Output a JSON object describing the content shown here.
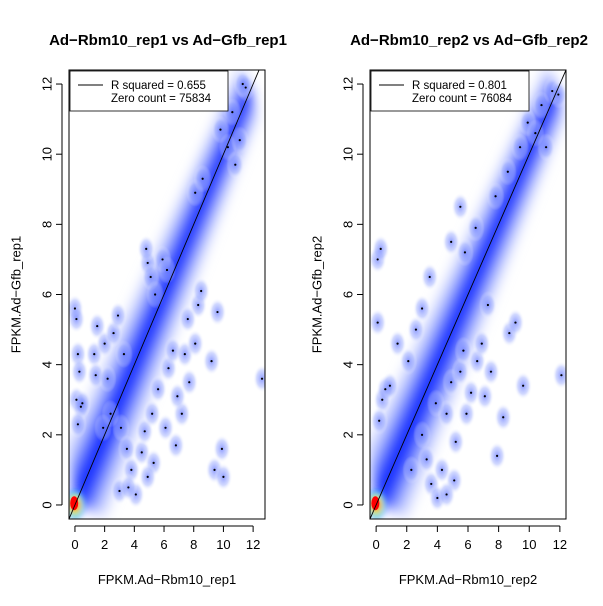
{
  "chart_data": [
    {
      "type": "scatter",
      "title": "Ad−Rbm10_rep1 vs Ad−Gfb_rep1",
      "xlabel": "FPKM.Ad−Rbm10_rep1",
      "ylabel": "FPKM.Ad−Gfb_rep1",
      "xlim": [
        -0.4,
        12.8
      ],
      "ylim": [
        -0.4,
        12.4
      ],
      "xticks": [
        "0",
        "2",
        "4",
        "6",
        "8",
        "10",
        "12"
      ],
      "yticks": [
        "0",
        "2",
        "4",
        "6",
        "8",
        "10",
        "12"
      ],
      "legend": {
        "position": "top-left",
        "entries": [
          "R squared = 0.655",
          "Zero count = 75834"
        ]
      },
      "fit_line": {
        "slope": 1.0,
        "intercept": 0.0
      },
      "grid": false,
      "density": {
        "colormap": [
          "#ffffff",
          "#0000ff",
          "#00ffff",
          "#ffff00",
          "#ff0000"
        ],
        "mode": "smoothScatter"
      },
      "points": [
        [
          0.0,
          5.6
        ],
        [
          0.1,
          5.3
        ],
        [
          0.2,
          4.3
        ],
        [
          0.3,
          3.8
        ],
        [
          0.1,
          3.0
        ],
        [
          0.4,
          2.8
        ],
        [
          0.2,
          2.3
        ],
        [
          0.5,
          2.9
        ],
        [
          1.3,
          4.3
        ],
        [
          1.5,
          5.1
        ],
        [
          2.0,
          4.6
        ],
        [
          1.4,
          3.7
        ],
        [
          2.2,
          3.6
        ],
        [
          2.6,
          4.9
        ],
        [
          2.9,
          5.4
        ],
        [
          3.3,
          4.3
        ],
        [
          4.9,
          6.9
        ],
        [
          5.1,
          6.5
        ],
        [
          5.4,
          6.0
        ],
        [
          4.8,
          7.3
        ],
        [
          5.9,
          7.0
        ],
        [
          6.2,
          6.7
        ],
        [
          8.1,
          8.9
        ],
        [
          8.6,
          9.3
        ],
        [
          9.8,
          10.7
        ],
        [
          10.3,
          10.2
        ],
        [
          10.6,
          11.2
        ],
        [
          10.8,
          9.7
        ],
        [
          11.1,
          10.4
        ],
        [
          11.5,
          11.9
        ],
        [
          11.3,
          12.0
        ],
        [
          3.1,
          2.2
        ],
        [
          3.5,
          1.6
        ],
        [
          3.8,
          1.0
        ],
        [
          4.1,
          0.3
        ],
        [
          3.0,
          0.4
        ],
        [
          4.5,
          1.5
        ],
        [
          4.7,
          2.1
        ],
        [
          5.2,
          2.6
        ],
        [
          5.6,
          3.3
        ],
        [
          6.1,
          2.2
        ],
        [
          6.3,
          3.9
        ],
        [
          6.6,
          4.4
        ],
        [
          6.8,
          1.7
        ],
        [
          7.2,
          2.6
        ],
        [
          7.4,
          4.3
        ],
        [
          7.7,
          3.5
        ],
        [
          8.1,
          4.6
        ],
        [
          6.9,
          3.1
        ],
        [
          5.3,
          1.2
        ],
        [
          4.9,
          0.8
        ],
        [
          3.6,
          0.5
        ],
        [
          8.3,
          5.7
        ],
        [
          9.2,
          4.1
        ],
        [
          9.6,
          5.5
        ],
        [
          12.6,
          3.6
        ],
        [
          9.9,
          1.6
        ],
        [
          9.4,
          1.0
        ],
        [
          10.0,
          0.8
        ],
        [
          8.5,
          6.1
        ],
        [
          7.6,
          5.3
        ],
        [
          2.4,
          2.6
        ],
        [
          1.9,
          2.2
        ]
      ]
    },
    {
      "type": "scatter",
      "title": "Ad−Rbm10_rep2 vs Ad−Gfb_rep2",
      "xlabel": "FPKM.Ad−Rbm10_rep2",
      "ylabel": "FPKM.Ad−Gfb_rep2",
      "xlim": [
        -0.4,
        12.4
      ],
      "ylim": [
        -0.4,
        12.4
      ],
      "xticks": [
        "0",
        "2",
        "4",
        "6",
        "8",
        "10",
        "12"
      ],
      "yticks": [
        "0",
        "2",
        "4",
        "6",
        "8",
        "10",
        "12"
      ],
      "legend": {
        "position": "top-left",
        "entries": [
          "R squared = 0.801",
          "Zero count = 76084"
        ]
      },
      "fit_line": {
        "slope": 1.0,
        "intercept": 0.0
      },
      "grid": false,
      "density": {
        "colormap": [
          "#ffffff",
          "#0000ff",
          "#00ffff",
          "#ffff00",
          "#ff0000"
        ],
        "mode": "smoothScatter"
      },
      "points": [
        [
          0.1,
          7.0
        ],
        [
          0.3,
          7.3
        ],
        [
          0.1,
          5.2
        ],
        [
          0.4,
          3.0
        ],
        [
          0.6,
          3.3
        ],
        [
          0.2,
          2.4
        ],
        [
          0.9,
          3.4
        ],
        [
          1.4,
          4.6
        ],
        [
          2.1,
          4.1
        ],
        [
          2.6,
          5.0
        ],
        [
          3.0,
          5.6
        ],
        [
          3.5,
          6.5
        ],
        [
          4.9,
          7.5
        ],
        [
          5.5,
          8.5
        ],
        [
          5.8,
          7.2
        ],
        [
          6.5,
          7.9
        ],
        [
          7.8,
          8.8
        ],
        [
          8.6,
          9.5
        ],
        [
          9.4,
          10.2
        ],
        [
          9.9,
          10.9
        ],
        [
          10.4,
          10.6
        ],
        [
          10.8,
          11.4
        ],
        [
          11.1,
          10.2
        ],
        [
          11.5,
          11.8
        ],
        [
          11.9,
          11.7
        ],
        [
          3.0,
          2.0
        ],
        [
          3.3,
          1.3
        ],
        [
          3.6,
          0.6
        ],
        [
          4.0,
          0.2
        ],
        [
          4.3,
          1.0
        ],
        [
          4.6,
          2.6
        ],
        [
          4.9,
          3.5
        ],
        [
          5.2,
          1.8
        ],
        [
          5.5,
          3.8
        ],
        [
          5.9,
          2.6
        ],
        [
          6.2,
          3.2
        ],
        [
          6.6,
          4.1
        ],
        [
          7.1,
          3.1
        ],
        [
          7.5,
          3.8
        ],
        [
          7.9,
          1.4
        ],
        [
          8.3,
          2.5
        ],
        [
          8.7,
          4.9
        ],
        [
          9.1,
          5.2
        ],
        [
          9.6,
          3.4
        ],
        [
          12.1,
          3.7
        ],
        [
          5.1,
          0.7
        ],
        [
          4.6,
          0.3
        ],
        [
          2.3,
          1.0
        ],
        [
          6.9,
          4.6
        ],
        [
          7.3,
          5.7
        ],
        [
          5.7,
          4.4
        ],
        [
          3.9,
          2.9
        ]
      ]
    }
  ]
}
